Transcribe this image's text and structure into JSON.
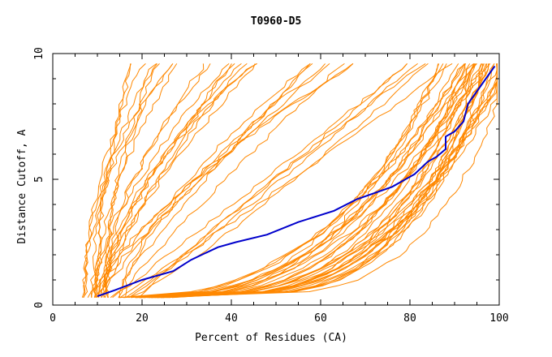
{
  "chart_data": {
    "type": "line",
    "title": "T0960-D5",
    "xlabel": "Percent of Residues (CA)",
    "ylabel": "Distance Cutoff, A",
    "xlim": [
      0,
      100
    ],
    "ylim": [
      0,
      10
    ],
    "x_ticks": [
      "0",
      "20",
      "40",
      "60",
      "80",
      "100"
    ],
    "y_ticks": [
      "0",
      "5",
      "10"
    ],
    "grid": false,
    "colors": {
      "highlight": "#0000cc",
      "others": "#ff8800"
    },
    "highlighted_series": {
      "x": [
        10,
        14,
        20,
        27,
        31,
        34,
        37,
        41,
        48,
        55,
        63,
        68,
        76,
        81,
        84,
        86,
        88,
        88,
        90,
        92,
        93,
        95,
        97,
        99
      ],
      "y": [
        0.35,
        0.6,
        1.0,
        1.35,
        1.8,
        2.05,
        2.3,
        2.5,
        2.8,
        3.3,
        3.75,
        4.2,
        4.7,
        5.2,
        5.7,
        5.9,
        6.2,
        6.7,
        6.9,
        7.3,
        8.0,
        8.5,
        9.0,
        9.5
      ]
    }
  }
}
